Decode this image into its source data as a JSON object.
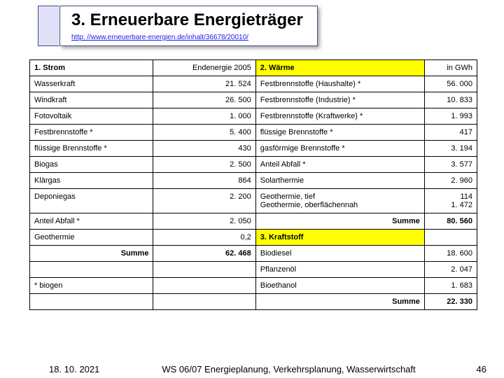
{
  "title": "3. Erneuerbare Energieträger",
  "subtitle": "http: //www.erneuerbare-energien.de/inhalt/36678/20010/",
  "hdr1_left": "1. Strom",
  "hdr1_mid": "Endenergie 2005",
  "hdr2": "2. Wärme",
  "hdr2_unit": "in GWh",
  "hdr3": "3. Kraftstoff",
  "col_a": [
    "Wasserkraft",
    "Windkraft",
    "Fotovoltaik",
    "Festbrennstoffe *",
    "flüssige Brennstoffe *",
    "Biogas",
    "Klärgas",
    "Deponiegas",
    "Anteil Abfall *",
    "Geothermie"
  ],
  "col_b": [
    "21. 524",
    "26. 500",
    "1. 000",
    "5. 400",
    "430",
    "2. 500",
    "864",
    "2. 200",
    "2. 050",
    "0,2"
  ],
  "col_c": [
    "Festbrennstoffe (Haushalte) *",
    "Festbrennstoffe (Industrie) *",
    "Festbrennstoffe (Kraftwerke) *",
    "flüssige Brennstoffe *",
    "gasförmige Brennstoffe *",
    "Anteil Abfall *",
    "Solarthermie",
    "Geothermie, tief\nGeothermie, oberflächennah"
  ],
  "col_d": [
    "56. 000",
    "10. 833",
    "1. 993",
    "417",
    "3. 194",
    "3. 577",
    "2. 960",
    "114\n1. 472"
  ],
  "sum1_label": "Summe",
  "sum1_val": "62. 468",
  "sum2_label": "Summe",
  "sum2_val": "80. 560",
  "fuel_a": [
    "Biodiesel",
    "Pflanzenöl",
    "Bioethanol"
  ],
  "fuel_b": [
    "18. 600",
    "2. 047",
    "1. 683"
  ],
  "biogen": " * biogen",
  "sum3_label": "Summe",
  "sum3_val": "22. 330",
  "footer_date": "18. 10. 2021",
  "footer_mid": "WS 06/07 Energieplanung, Verkehrsplanung, Wasserwirtschaft",
  "footer_page": "46"
}
